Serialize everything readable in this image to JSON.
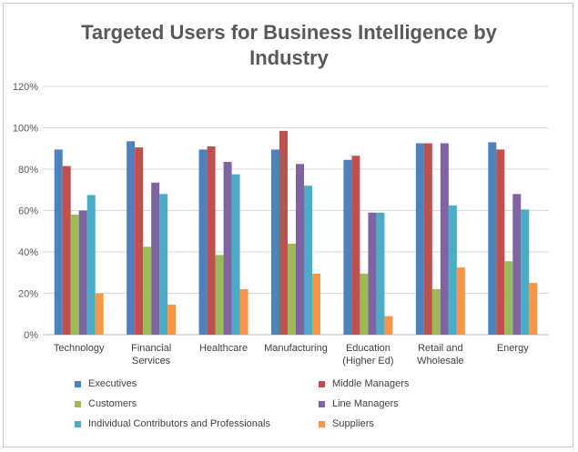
{
  "chart_data": {
    "type": "bar",
    "title_lines": [
      "Targeted Users for Business Intelligence by",
      "Industry"
    ],
    "categories": [
      [
        "Technology"
      ],
      [
        "Financial",
        "Services"
      ],
      [
        "Healthcare"
      ],
      [
        "Manufacturing"
      ],
      [
        "Education",
        "(Higher Ed)"
      ],
      [
        "Retail and",
        "Wholesale"
      ],
      [
        "Energy"
      ]
    ],
    "ylim": [
      0,
      1.2
    ],
    "yticks": [
      "0%",
      "20%",
      "40%",
      "60%",
      "80%",
      "100%",
      "120%"
    ],
    "grid": true,
    "legend_position": "bottom",
    "series": [
      {
        "name": "Executives",
        "color": "#4F81BD",
        "values": [
          0.895,
          0.935,
          0.895,
          0.895,
          0.845,
          0.925,
          0.93
        ]
      },
      {
        "name": "Middle Managers",
        "color": "#C0504D",
        "values": [
          0.815,
          0.905,
          0.91,
          0.985,
          0.865,
          0.925,
          0.895
        ]
      },
      {
        "name": "Customers",
        "color": "#9BBB59",
        "values": [
          0.58,
          0.425,
          0.385,
          0.44,
          0.295,
          0.22,
          0.355
        ]
      },
      {
        "name": "Line Managers",
        "color": "#8064A2",
        "values": [
          0.6,
          0.735,
          0.835,
          0.825,
          0.59,
          0.925,
          0.68
        ]
      },
      {
        "name": "Individual Contributors and Professionals",
        "color": "#4BACC6",
        "values": [
          0.675,
          0.68,
          0.775,
          0.72,
          0.59,
          0.625,
          0.605
        ]
      },
      {
        "name": "Suppliers",
        "color": "#F79646",
        "values": [
          0.2,
          0.145,
          0.22,
          0.295,
          0.09,
          0.325,
          0.25
        ]
      }
    ]
  }
}
